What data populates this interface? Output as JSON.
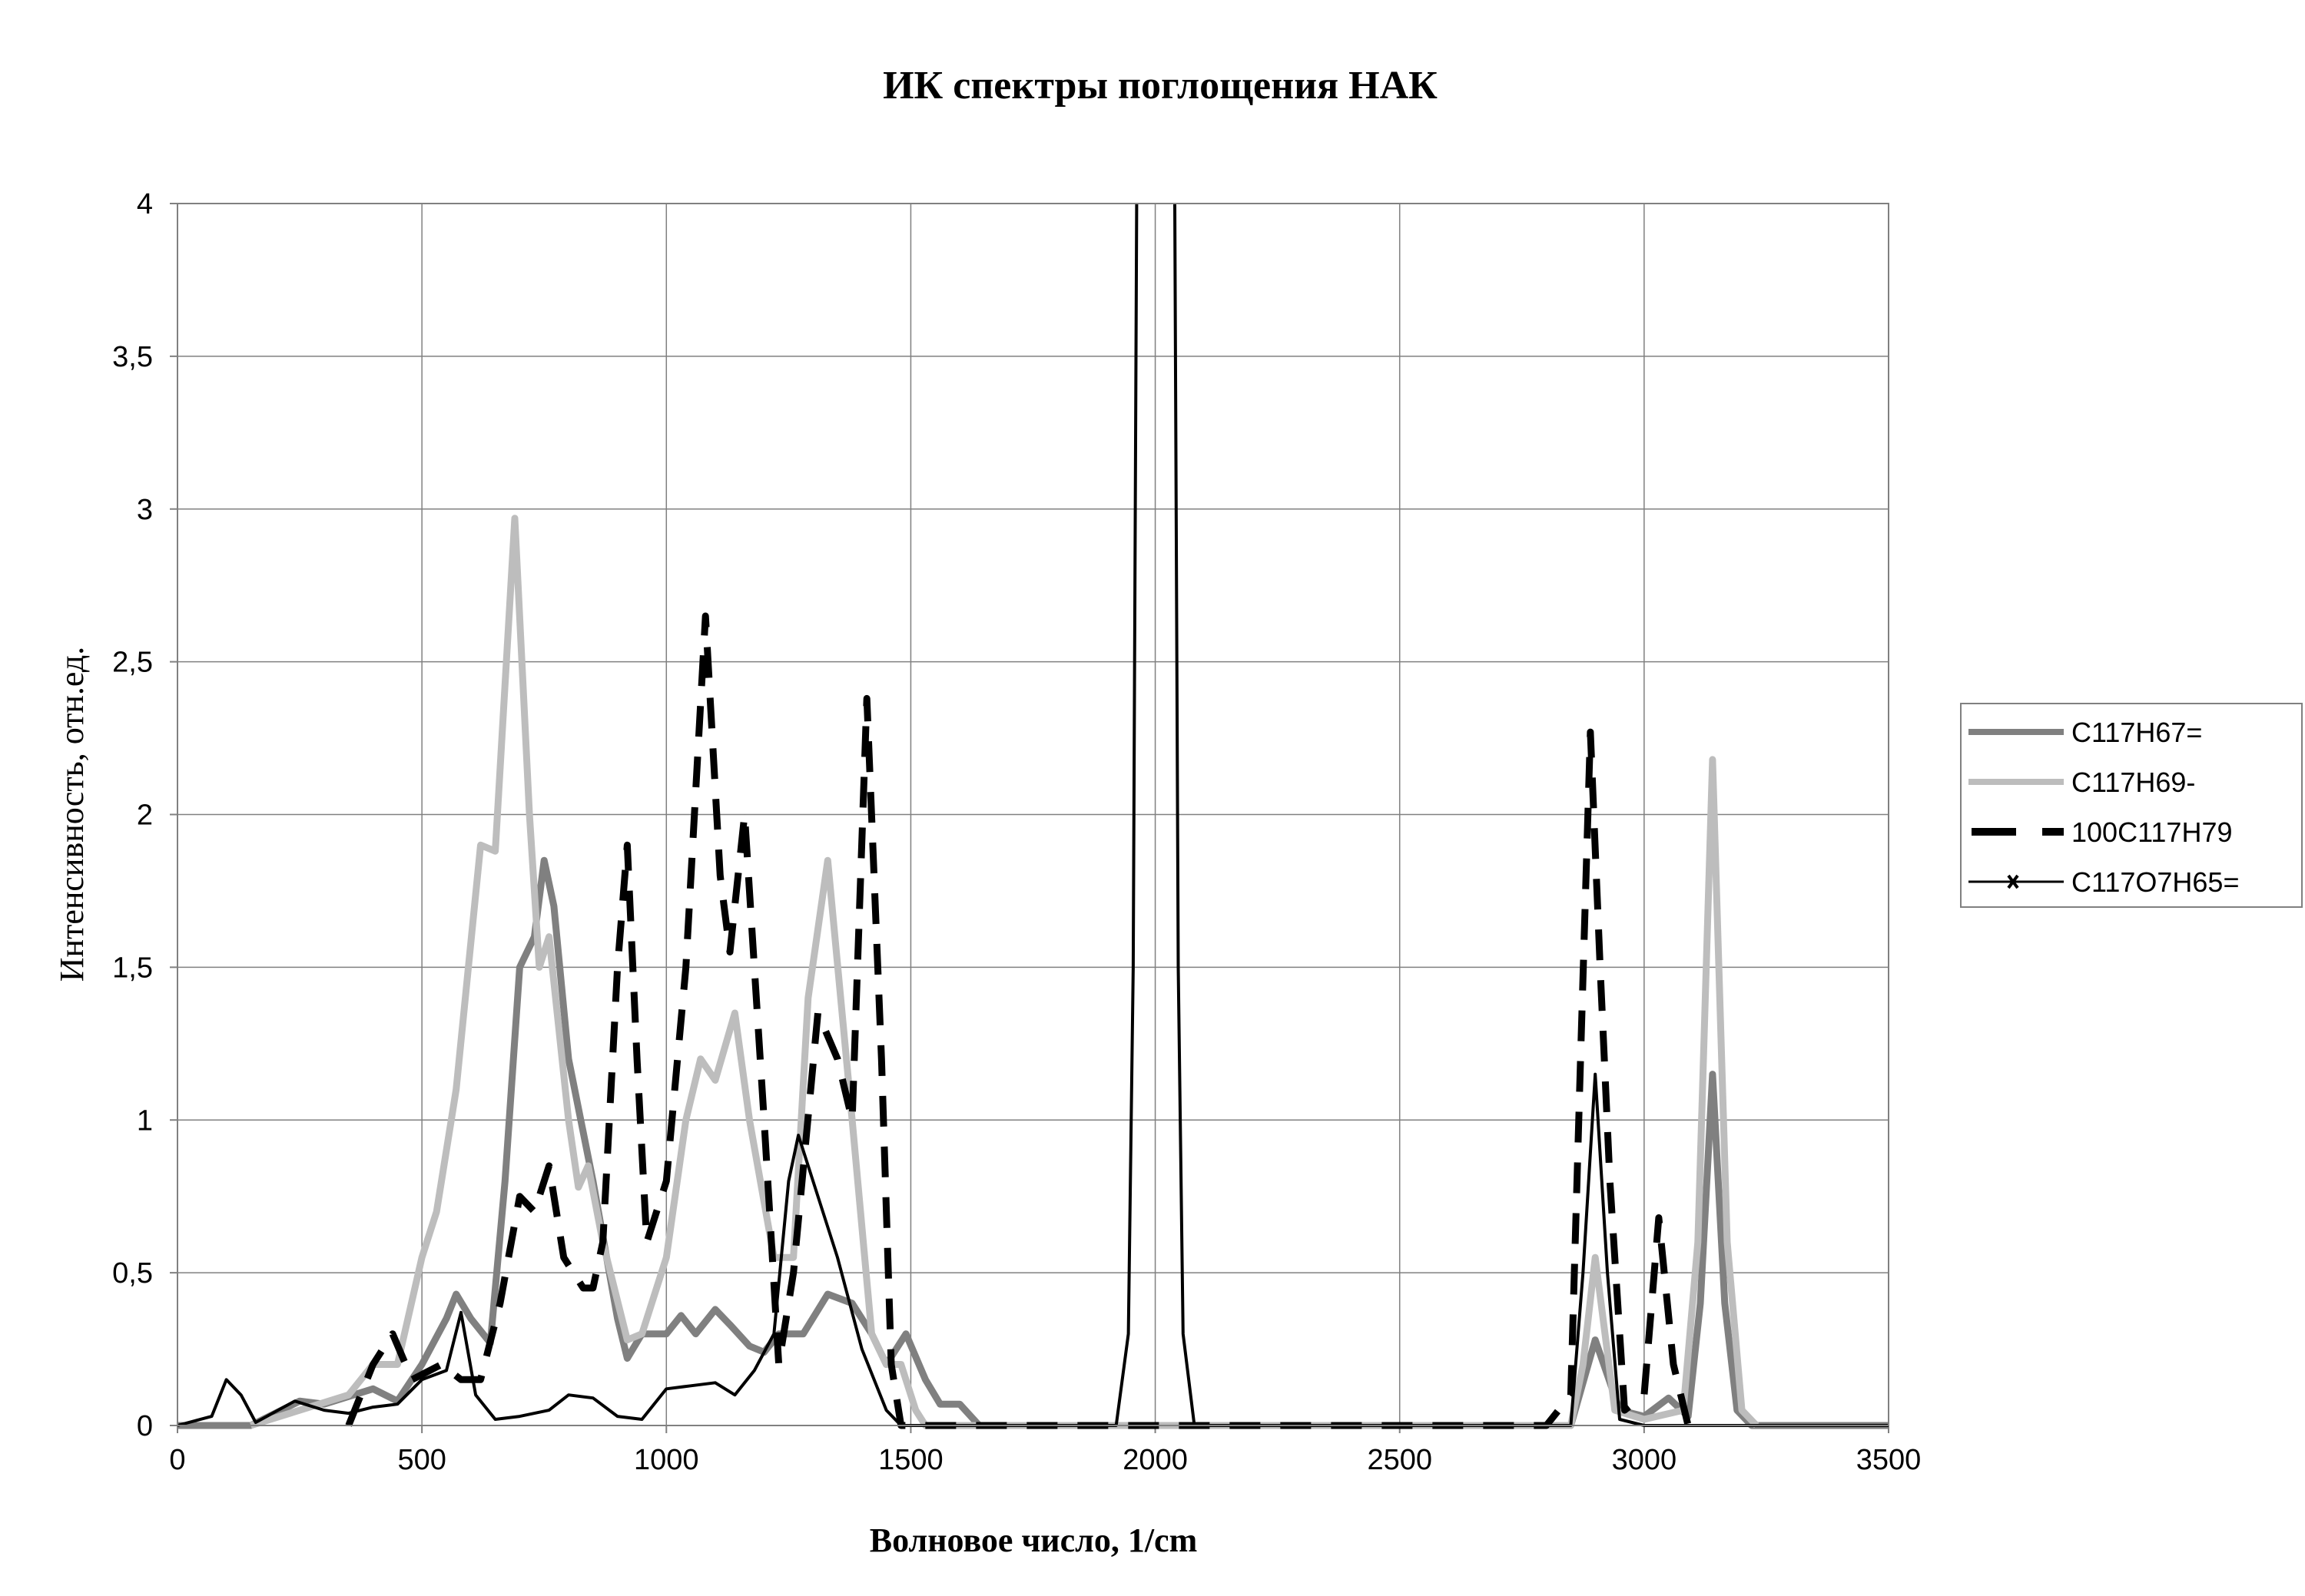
{
  "chart_data": {
    "type": "line",
    "title": "ИК спектры поглощения НАК",
    "xlabel": "Волновое число, 1/cm",
    "ylabel": "Интенсивность, отн.ед.",
    "xlim": [
      0,
      3500
    ],
    "ylim": [
      0,
      4
    ],
    "xticks": [
      "0",
      "500",
      "1000",
      "1500",
      "2000",
      "2500",
      "3000",
      "3500"
    ],
    "yticks": [
      "0",
      "0,5",
      "1",
      "1,5",
      "2",
      "2,5",
      "3",
      "3,5",
      "4"
    ],
    "grid": true,
    "legend_position": "right",
    "series": [
      {
        "name": "C117H67=",
        "color": "#808080",
        "style": "solid-thick",
        "points": [
          [
            0,
            0
          ],
          [
            150,
            0
          ],
          [
            250,
            0.08
          ],
          [
            300,
            0.07
          ],
          [
            400,
            0.12
          ],
          [
            450,
            0.08
          ],
          [
            500,
            0.2
          ],
          [
            550,
            0.35
          ],
          [
            570,
            0.43
          ],
          [
            600,
            0.35
          ],
          [
            640,
            0.27
          ],
          [
            670,
            0.8
          ],
          [
            700,
            1.5
          ],
          [
            730,
            1.6
          ],
          [
            750,
            1.85
          ],
          [
            770,
            1.7
          ],
          [
            800,
            1.2
          ],
          [
            850,
            0.8
          ],
          [
            900,
            0.35
          ],
          [
            920,
            0.22
          ],
          [
            950,
            0.3
          ],
          [
            1000,
            0.3
          ],
          [
            1030,
            0.36
          ],
          [
            1060,
            0.3
          ],
          [
            1100,
            0.38
          ],
          [
            1130,
            0.33
          ],
          [
            1170,
            0.26
          ],
          [
            1200,
            0.24
          ],
          [
            1230,
            0.3
          ],
          [
            1280,
            0.3
          ],
          [
            1330,
            0.43
          ],
          [
            1380,
            0.4
          ],
          [
            1420,
            0.3
          ],
          [
            1450,
            0.2
          ],
          [
            1490,
            0.3
          ],
          [
            1530,
            0.15
          ],
          [
            1560,
            0.07
          ],
          [
            1600,
            0.07
          ],
          [
            1640,
            0
          ],
          [
            2850,
            0
          ],
          [
            2900,
            0.28
          ],
          [
            2950,
            0.05
          ],
          [
            3000,
            0.03
          ],
          [
            3050,
            0.09
          ],
          [
            3090,
            0.03
          ],
          [
            3115,
            0.4
          ],
          [
            3140,
            1.15
          ],
          [
            3165,
            0.4
          ],
          [
            3190,
            0.05
          ],
          [
            3220,
            0
          ],
          [
            3500,
            0
          ]
        ]
      },
      {
        "name": "C117H69-",
        "color": "#bdbdbd",
        "style": "solid-thick",
        "points": [
          [
            150,
            0
          ],
          [
            250,
            0.05
          ],
          [
            350,
            0.1
          ],
          [
            400,
            0.2
          ],
          [
            450,
            0.2
          ],
          [
            500,
            0.55
          ],
          [
            530,
            0.7
          ],
          [
            570,
            1.1
          ],
          [
            620,
            1.9
          ],
          [
            650,
            1.88
          ],
          [
            690,
            2.97
          ],
          [
            720,
            2.0
          ],
          [
            740,
            1.5
          ],
          [
            760,
            1.6
          ],
          [
            800,
            1.0
          ],
          [
            820,
            0.78
          ],
          [
            840,
            0.85
          ],
          [
            870,
            0.6
          ],
          [
            920,
            0.28
          ],
          [
            950,
            0.3
          ],
          [
            1000,
            0.55
          ],
          [
            1040,
            1.0
          ],
          [
            1070,
            1.2
          ],
          [
            1100,
            1.13
          ],
          [
            1140,
            1.35
          ],
          [
            1170,
            1.0
          ],
          [
            1220,
            0.55
          ],
          [
            1260,
            0.55
          ],
          [
            1290,
            1.4
          ],
          [
            1330,
            1.85
          ],
          [
            1380,
            1.0
          ],
          [
            1420,
            0.3
          ],
          [
            1450,
            0.2
          ],
          [
            1480,
            0.2
          ],
          [
            1510,
            0.05
          ],
          [
            1530,
            0
          ],
          [
            2850,
            0
          ],
          [
            2875,
            0.2
          ],
          [
            2900,
            0.55
          ],
          [
            2940,
            0.05
          ],
          [
            3000,
            0.02
          ],
          [
            3080,
            0.05
          ],
          [
            3110,
            0.6
          ],
          [
            3140,
            2.18
          ],
          [
            3170,
            0.6
          ],
          [
            3200,
            0.05
          ],
          [
            3230,
            0
          ]
        ]
      },
      {
        "name": "100C117H79",
        "color": "#000000",
        "style": "dashed",
        "points": [
          [
            350,
            0
          ],
          [
            400,
            0.2
          ],
          [
            440,
            0.3
          ],
          [
            480,
            0.15
          ],
          [
            540,
            0.2
          ],
          [
            580,
            0.15
          ],
          [
            620,
            0.15
          ],
          [
            660,
            0.4
          ],
          [
            700,
            0.75
          ],
          [
            730,
            0.7
          ],
          [
            760,
            0.85
          ],
          [
            790,
            0.55
          ],
          [
            830,
            0.45
          ],
          [
            850,
            0.45
          ],
          [
            870,
            0.6
          ],
          [
            900,
            1.5
          ],
          [
            920,
            1.9
          ],
          [
            940,
            1.2
          ],
          [
            960,
            0.6
          ],
          [
            1000,
            0.8
          ],
          [
            1040,
            1.5
          ],
          [
            1080,
            2.65
          ],
          [
            1110,
            1.8
          ],
          [
            1130,
            1.55
          ],
          [
            1160,
            2.0
          ],
          [
            1200,
            1.0
          ],
          [
            1230,
            0.2
          ],
          [
            1260,
            0.5
          ],
          [
            1310,
            1.35
          ],
          [
            1350,
            1.2
          ],
          [
            1380,
            1.0
          ],
          [
            1410,
            2.38
          ],
          [
            1440,
            1.2
          ],
          [
            1460,
            0.2
          ],
          [
            1480,
            0
          ],
          [
            2800,
            0
          ],
          [
            2850,
            0.1
          ],
          [
            2870,
            1.2
          ],
          [
            2890,
            2.27
          ],
          [
            2910,
            1.5
          ],
          [
            2930,
            0.8
          ],
          [
            2960,
            0.05
          ],
          [
            3000,
            0.1
          ],
          [
            3030,
            0.68
          ],
          [
            3060,
            0.2
          ],
          [
            3090,
            0
          ]
        ]
      },
      {
        "name": "C117O7H65=",
        "color": "#000000",
        "style": "solid-markers",
        "points": [
          [
            0,
            0
          ],
          [
            70,
            0.03
          ],
          [
            100,
            0.15
          ],
          [
            130,
            0.1
          ],
          [
            160,
            0.01
          ],
          [
            240,
            0.08
          ],
          [
            300,
            0.05
          ],
          [
            350,
            0.04
          ],
          [
            400,
            0.06
          ],
          [
            450,
            0.07
          ],
          [
            500,
            0.15
          ],
          [
            550,
            0.18
          ],
          [
            580,
            0.37
          ],
          [
            610,
            0.1
          ],
          [
            650,
            0.02
          ],
          [
            700,
            0.03
          ],
          [
            760,
            0.05
          ],
          [
            800,
            0.1
          ],
          [
            850,
            0.09
          ],
          [
            900,
            0.03
          ],
          [
            950,
            0.02
          ],
          [
            1000,
            0.12
          ],
          [
            1050,
            0.13
          ],
          [
            1100,
            0.14
          ],
          [
            1140,
            0.1
          ],
          [
            1180,
            0.18
          ],
          [
            1220,
            0.3
          ],
          [
            1250,
            0.8
          ],
          [
            1270,
            0.95
          ],
          [
            1300,
            0.8
          ],
          [
            1350,
            0.55
          ],
          [
            1400,
            0.25
          ],
          [
            1450,
            0.05
          ],
          [
            1480,
            0
          ],
          [
            1920,
            0
          ],
          [
            1945,
            0.3
          ],
          [
            1955,
            1.5
          ],
          [
            1962,
            4
          ],
          null,
          [
            2040,
            4
          ],
          [
            2047,
            1.5
          ],
          [
            2057,
            0.3
          ],
          [
            2080,
            0
          ],
          [
            2850,
            0
          ],
          [
            2875,
            0.5
          ],
          [
            2900,
            1.15
          ],
          [
            2925,
            0.5
          ],
          [
            2950,
            0.02
          ],
          [
            3000,
            0
          ],
          [
            3500,
            0
          ]
        ]
      }
    ]
  }
}
